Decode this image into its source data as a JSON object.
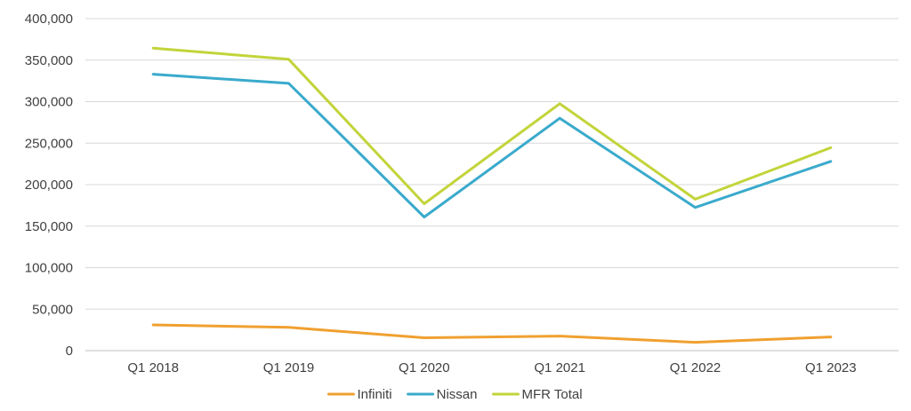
{
  "chart_data": {
    "type": "line",
    "title": "",
    "xlabel": "",
    "ylabel": "",
    "categories": [
      "Q1 2018",
      "Q1 2019",
      "Q1 2020",
      "Q1 2021",
      "Q1 2022",
      "Q1 2023"
    ],
    "ylim": [
      0,
      400000
    ],
    "y_ticks": [
      0,
      50000,
      100000,
      150000,
      200000,
      250000,
      300000,
      350000,
      400000
    ],
    "y_tick_labels": [
      "0",
      "50,000",
      "100,000",
      "150,000",
      "200,000",
      "250,000",
      "300,000",
      "350,000",
      "400,000"
    ],
    "grid": true,
    "legend_position": "bottom",
    "series": [
      {
        "name": "Infiniti",
        "color": "#f0a030",
        "values": [
          31000,
          28000,
          15500,
          17500,
          10000,
          16500
        ]
      },
      {
        "name": "Nissan",
        "color": "#3aaacc",
        "values": [
          333000,
          322000,
          161000,
          280000,
          172500,
          228000
        ]
      },
      {
        "name": "MFR Total",
        "color": "#c2d43a",
        "values": [
          364500,
          351000,
          177000,
          297500,
          182500,
          244500
        ]
      }
    ]
  }
}
